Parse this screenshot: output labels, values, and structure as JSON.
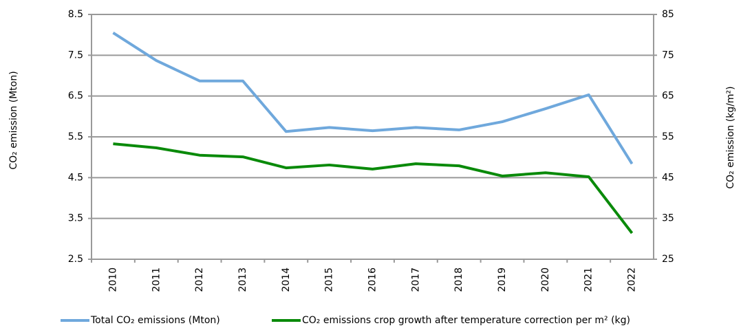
{
  "chart_data": {
    "type": "line",
    "y_label": "CO₂ emission (Mton)",
    "y2_label": "CO₂ emission (kg/m²)",
    "categories": [
      "2010",
      "2011",
      "2012",
      "2013",
      "2014",
      "2015",
      "2016",
      "2017",
      "2018",
      "2019",
      "2020",
      "2021",
      "2022"
    ],
    "series": [
      {
        "name": "Total CO₂ emissions (Mton)",
        "color": "#6fa8dc",
        "values": [
          8.05,
          7.37,
          6.87,
          6.87,
          5.63,
          5.73,
          5.65,
          5.73,
          5.67,
          5.87,
          6.19,
          6.53,
          4.84
        ]
      },
      {
        "name": "CO₂ emissions crop growth after temperature correction per m² (kg)",
        "color": "#0a8a0a",
        "axis": "y2",
        "values": [
          53.3,
          52.3,
          50.5,
          50.1,
          47.4,
          48.1,
          47.1,
          48.4,
          47.9,
          45.4,
          46.2,
          45.2,
          31.4
        ]
      }
    ],
    "ylim": [
      2.5,
      8.5
    ],
    "yticks": [
      2.5,
      3.5,
      4.5,
      5.5,
      6.5,
      7.5,
      8.5
    ],
    "y2lim": [
      25,
      85
    ],
    "y2ticks": [
      25,
      35,
      45,
      55,
      65,
      75,
      85
    ],
    "grid": true,
    "legend": "bottom"
  }
}
